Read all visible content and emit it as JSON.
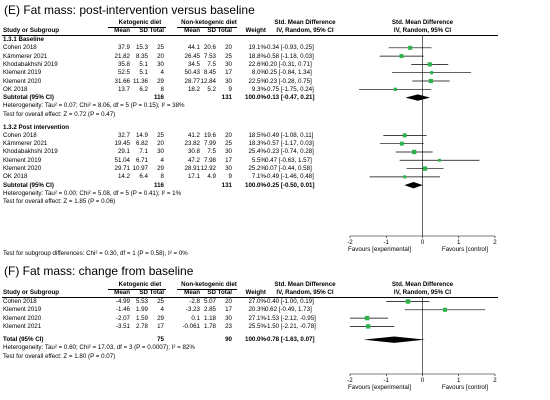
{
  "chart_data": [
    {
      "type": "forest",
      "title": "(E) Fat mass: post-intervention versus baseline",
      "columns": {
        "group1": "Ketogenic diet",
        "group2": "Non-ketogenic diet",
        "smd": "Std. Mean Difference",
        "smd_plot": "Std. Mean Difference",
        "study": "Study or Subgroup",
        "mean": "Mean",
        "sd": "SD",
        "total": "Total",
        "weight": "Weight",
        "ci": "IV, Random, 95% CI",
        "ci_plot": "IV, Random, 95% CI"
      },
      "xlim": [
        -2,
        2
      ],
      "ticks": [
        "-2",
        "-1",
        "0",
        "1",
        "2"
      ],
      "favours_left": "Favours [experimental]",
      "favours_right": "Favours [control]",
      "subgroups": [
        {
          "label": "1.3.1 Baseline",
          "studies": [
            {
              "name": "Cohen 2018",
              "m1": "37.9",
              "sd1": "15.3",
              "n1": "25",
              "m2": "44.1",
              "sd2": "20.6",
              "n2": "20",
              "weight": "19.1%",
              "ci": "-0.34 [-0.93, 0.25]",
              "est": -0.34,
              "lo": -0.93,
              "hi": 0.25,
              "w": 19.1
            },
            {
              "name": "Kämmerer 2021",
              "m1": "21.82",
              "sd1": "8.35",
              "n1": "20",
              "m2": "26.45",
              "sd2": "7.53",
              "n2": "25",
              "weight": "18.8%",
              "ci": "-0.58 [-1.18, 0.03]",
              "est": -0.58,
              "lo": -1.18,
              "hi": 0.03,
              "w": 18.8
            },
            {
              "name": "Khodabakhshi 2019",
              "m1": "35.8",
              "sd1": "5.1",
              "n1": "30",
              "m2": "34.5",
              "sd2": "7.5",
              "n2": "30",
              "weight": "22.6%",
              "ci": "0.20 [-0.31, 0.71]",
              "est": 0.2,
              "lo": -0.31,
              "hi": 0.71,
              "w": 22.6
            },
            {
              "name": "Klement 2019",
              "m1": "52.5",
              "sd1": "5.1",
              "n1": "4",
              "m2": "50.43",
              "sd2": "8.45",
              "n2": "17",
              "weight": "8.0%",
              "ci": "0.25 [-0.84, 1.34]",
              "est": 0.25,
              "lo": -0.84,
              "hi": 1.34,
              "w": 8.0
            },
            {
              "name": "Klement 2020",
              "m1": "31.66",
              "sd1": "11.36",
              "n1": "29",
              "m2": "28.77",
              "sd2": "12.84",
              "n2": "30",
              "weight": "22.5%",
              "ci": "0.23 [-0.28, 0.75]",
              "est": 0.23,
              "lo": -0.28,
              "hi": 0.75,
              "w": 22.5
            },
            {
              "name": "OK 2018",
              "m1": "13.7",
              "sd1": "6.2",
              "n1": "8",
              "m2": "18.2",
              "sd2": "5.2",
              "n2": "9",
              "weight": "9.3%",
              "ci": "-0.75 [-1.75, 0.24]",
              "est": -0.75,
              "lo": -1.75,
              "hi": 0.24,
              "w": 9.3
            }
          ],
          "subtotal": {
            "label": "Subtotal (95% CI)",
            "n1": "116",
            "n2": "131",
            "weight": "100.0%",
            "ci": "-0.13 [-0.47, 0.21]",
            "est": -0.13,
            "lo": -0.47,
            "hi": 0.21
          },
          "heterogeneity": "Heterogeneity: Tau² = 0.07; Chi² = 8.06, df = 5 (P = 0.15); I² = 38%",
          "overall_test": "Test for overall effect: Z = 0.72 (P = 0.47)"
        },
        {
          "label": "1.3.2 Post intervention",
          "studies": [
            {
              "name": "Cohen 2018",
              "m1": "32.7",
              "sd1": "14.9",
              "n1": "25",
              "m2": "41.2",
              "sd2": "19.6",
              "n2": "20",
              "weight": "18.5%",
              "ci": "-0.49 [-1.08, 0.11]",
              "est": -0.49,
              "lo": -1.08,
              "hi": 0.11,
              "w": 18.5
            },
            {
              "name": "Kämmerer 2021",
              "m1": "19.45",
              "sd1": "6.82",
              "n1": "20",
              "m2": "23.82",
              "sd2": "7.99",
              "n2": "25",
              "weight": "18.3%",
              "ci": "-0.57 [-1.17, 0.03]",
              "est": -0.57,
              "lo": -1.17,
              "hi": 0.03,
              "w": 18.3
            },
            {
              "name": "Khodabakhshi 2019",
              "m1": "29.1",
              "sd1": "7.1",
              "n1": "30",
              "m2": "30.8",
              "sd2": "7.5",
              "n2": "30",
              "weight": "25.4%",
              "ci": "-0.23 [-0.74, 0.28]",
              "est": -0.23,
              "lo": -0.74,
              "hi": 0.28,
              "w": 25.4
            },
            {
              "name": "Klement 2019",
              "m1": "51.04",
              "sd1": "6.71",
              "n1": "4",
              "m2": "47.2",
              "sd2": "7.98",
              "n2": "17",
              "weight": "5.5%",
              "ci": "0.47 [-0.63, 1.57]",
              "est": 0.47,
              "lo": -0.63,
              "hi": 1.57,
              "w": 5.5
            },
            {
              "name": "Klement 2020",
              "m1": "29.71",
              "sd1": "10.97",
              "n1": "29",
              "m2": "28.91",
              "sd2": "12.92",
              "n2": "30",
              "weight": "25.2%",
              "ci": "0.07 [-0.44, 0.58]",
              "est": 0.07,
              "lo": -0.44,
              "hi": 0.58,
              "w": 25.2
            },
            {
              "name": "OK 2018",
              "m1": "14.2",
              "sd1": "6.4",
              "n1": "8",
              "m2": "17.1",
              "sd2": "4.9",
              "n2": "9",
              "weight": "7.1%",
              "ci": "-0.49 [-1.46, 0.48]",
              "est": -0.49,
              "lo": -1.46,
              "hi": 0.48,
              "w": 7.1
            }
          ],
          "subtotal": {
            "label": "Subtotal (95% CI)",
            "n1": "116",
            "n2": "131",
            "weight": "100.0%",
            "ci": "-0.25 [-0.50, 0.01]",
            "est": -0.25,
            "lo": -0.5,
            "hi": 0.01
          },
          "heterogeneity": "Heterogeneity: Tau² = 0.00; Chi² = 5.08, df = 5 (P = 0.41); I² = 1%",
          "overall_test": "Test for overall effect: Z = 1.85 (P = 0.06)"
        }
      ],
      "subgroup_test": "Test for subgroup differences: Chi² = 0.30, df = 1 (P = 0.58), I² = 0%"
    },
    {
      "type": "forest",
      "title": "(F) Fat mass: change from baseline",
      "columns": {
        "group1": "Ketogenic diet",
        "group2": "Non-ketogenic diet",
        "smd": "Std. Mean Difference",
        "smd_plot": "Std. Mean Difference",
        "study": "Study or Subgroup",
        "mean": "Mean",
        "sd": "SD",
        "total": "Total",
        "weight": "Weight",
        "ci": "IV, Random, 95% CI",
        "ci_plot": "IV, Random, 95% CI"
      },
      "xlim": [
        -2,
        2
      ],
      "ticks": [
        "-2",
        "-1",
        "0",
        "1",
        "2"
      ],
      "favours_left": "Favours [experimental]",
      "favours_right": "Favours [control]",
      "studies": [
        {
          "name": "Cohen 2018",
          "m1": "-4.99",
          "sd1": "5.53",
          "n1": "25",
          "m2": "-2.8",
          "sd2": "5.07",
          "n2": "20",
          "weight": "27.0%",
          "ci": "-0.40 [-1.00, 0.19]",
          "est": -0.4,
          "lo": -1.0,
          "hi": 0.19,
          "w": 27.0
        },
        {
          "name": "Klement 2019",
          "m1": "-1.46",
          "sd1": "1.99",
          "n1": "4",
          "m2": "-3.23",
          "sd2": "2.85",
          "n2": "17",
          "weight": "20.3%",
          "ci": "0.62 [-0.49, 1.73]",
          "est": 0.62,
          "lo": -0.49,
          "hi": 1.73,
          "w": 20.3
        },
        {
          "name": "Klement 2020",
          "m1": "-2.07",
          "sd1": "1.59",
          "n1": "29",
          "m2": "0.1",
          "sd2": "1.18",
          "n2": "30",
          "weight": "27.1%",
          "ci": "-1.53 [-2.12, -0.95]",
          "est": -1.53,
          "lo": -2.12,
          "hi": -0.95,
          "w": 27.1
        },
        {
          "name": "Klement 2021",
          "m1": "-3.51",
          "sd1": "2.78",
          "n1": "17",
          "m2": "-0.061",
          "sd2": "1.78",
          "n2": "23",
          "weight": "25.5%",
          "ci": "-1.50 [-2.21, -0.78]",
          "est": -1.5,
          "lo": -2.21,
          "hi": -0.78,
          "w": 25.5
        }
      ],
      "total": {
        "label": "Total (95% CI)",
        "n1": "75",
        "n2": "90",
        "weight": "100.0%",
        "ci": "-0.78 [-1.63, 0.07]",
        "est": -0.78,
        "lo": -1.63,
        "hi": 0.07
      },
      "heterogeneity": "Heterogeneity: Tau² = 0.60; Chi² = 17.03, df = 3 (P = 0.0007); I² = 82%",
      "overall_test": "Test for overall effect: Z = 1.80 (P = 0.07)"
    }
  ],
  "colors": {
    "marker": "#2db34a",
    "diamond": "#000000"
  }
}
